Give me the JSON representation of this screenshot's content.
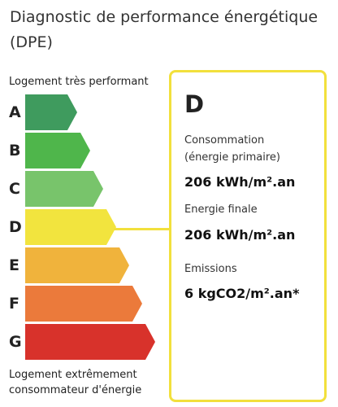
{
  "header": {
    "title": "Diagnostic de performance énergétique (DPE)"
  },
  "scale": {
    "top_label": "Logement très performant",
    "bottom_label": "Logement extrêmement consommateur d'énergie",
    "ratings": [
      {
        "letter": "A",
        "color": "#3f9b5e"
      },
      {
        "letter": "B",
        "color": "#4fb64b"
      },
      {
        "letter": "C",
        "color": "#78c46b"
      },
      {
        "letter": "D",
        "color": "#f2e43e"
      },
      {
        "letter": "E",
        "color": "#f0b33c"
      },
      {
        "letter": "F",
        "color": "#eb7a3b"
      },
      {
        "letter": "G",
        "color": "#d8322b"
      }
    ],
    "highlight_color": "#f2e03c"
  },
  "result": {
    "rating": "D",
    "consumption_label_line1": "Consommation",
    "consumption_label_line2": "(énergie primaire)",
    "consumption_value": "206 kWh/m².an",
    "final_energy_label": "Energie finale",
    "final_energy_value": "206 kWh/m².an",
    "emissions_label": "Emissions",
    "emissions_value": "6 kgCO2/m².an*"
  }
}
